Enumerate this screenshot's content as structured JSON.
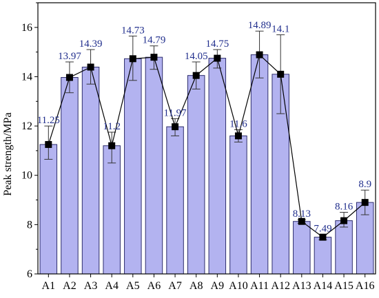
{
  "chart_data": {
    "type": "bar",
    "title": "",
    "xlabel": "",
    "ylabel": "Peak strength/MPa",
    "ylim": [
      6,
      17
    ],
    "yticks": [
      6,
      8,
      10,
      12,
      14,
      16
    ],
    "grid": false,
    "legend": "none",
    "categories": [
      "A1",
      "A2",
      "A3",
      "A4",
      "A5",
      "A6",
      "A7",
      "A8",
      "A9",
      "A10",
      "A11",
      "A12",
      "A13",
      "A14",
      "A15",
      "A16"
    ],
    "values": [
      11.25,
      13.97,
      14.39,
      11.2,
      14.73,
      14.79,
      11.97,
      14.05,
      14.75,
      11.6,
      14.89,
      14.1,
      8.13,
      7.49,
      8.16,
      8.9
    ],
    "labels": [
      "11.25",
      "13.97",
      "14.39",
      "11.2",
      "14.73",
      "14.79",
      "11.97",
      "14.05",
      "14.75",
      "11.6",
      "14.89",
      "14.1",
      "8.13",
      "7.49",
      "8.16",
      "8.9"
    ],
    "error_low": [
      10.65,
      13.35,
      13.7,
      10.5,
      13.85,
      14.3,
      11.6,
      13.5,
      14.35,
      11.35,
      13.95,
      12.5,
      8.05,
      7.38,
      7.9,
      8.4
    ],
    "error_high": [
      12.0,
      14.6,
      15.1,
      11.75,
      15.65,
      15.25,
      12.3,
      14.6,
      15.1,
      11.85,
      15.85,
      15.7,
      8.2,
      7.6,
      8.5,
      9.4
    ],
    "overlay": {
      "type": "line",
      "marker": "square"
    },
    "colors": {
      "bar_fill": "#b3b3f0",
      "bar_stroke": "#2b2b6b",
      "line": "#000000",
      "marker": "#000000",
      "error_bar": "#333333",
      "label": "#1f2d8c"
    }
  }
}
